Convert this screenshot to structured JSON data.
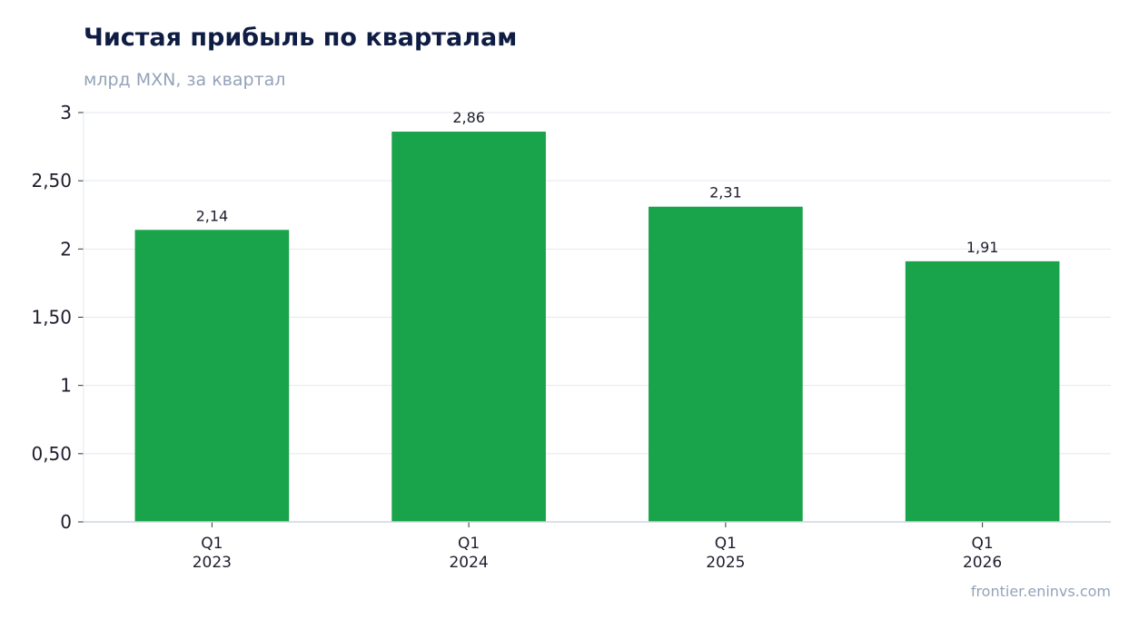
{
  "header": {
    "title": "Чистая прибыль по кварталам",
    "subtitle": "млрд MXN, за квартал"
  },
  "footer": {
    "source": "frontier.eninvs.com"
  },
  "chart_data": {
    "type": "bar",
    "title": "Чистая прибыль по кварталам",
    "subtitle": "млрд MXN, за квартал",
    "categories": [
      {
        "line1": "Q1",
        "line2": "2023"
      },
      {
        "line1": "Q1",
        "line2": "2024"
      },
      {
        "line1": "Q1",
        "line2": "2025"
      },
      {
        "line1": "Q1",
        "line2": "2026"
      }
    ],
    "values": [
      2.14,
      2.86,
      2.31,
      1.91
    ],
    "value_labels": [
      "2,14",
      "2,86",
      "2,31",
      "1,91"
    ],
    "yticks": [
      0,
      0.5,
      1,
      1.5,
      2,
      2.5,
      3
    ],
    "ytick_labels": [
      "0",
      "0,50",
      "1",
      "1,50",
      "2",
      "2,50",
      "3"
    ],
    "ylim": [
      0,
      3
    ],
    "grid": true,
    "colors": {
      "bar": "#19a34a",
      "grid": "#e2e8f0",
      "axis": "#cbd5e1"
    }
  }
}
